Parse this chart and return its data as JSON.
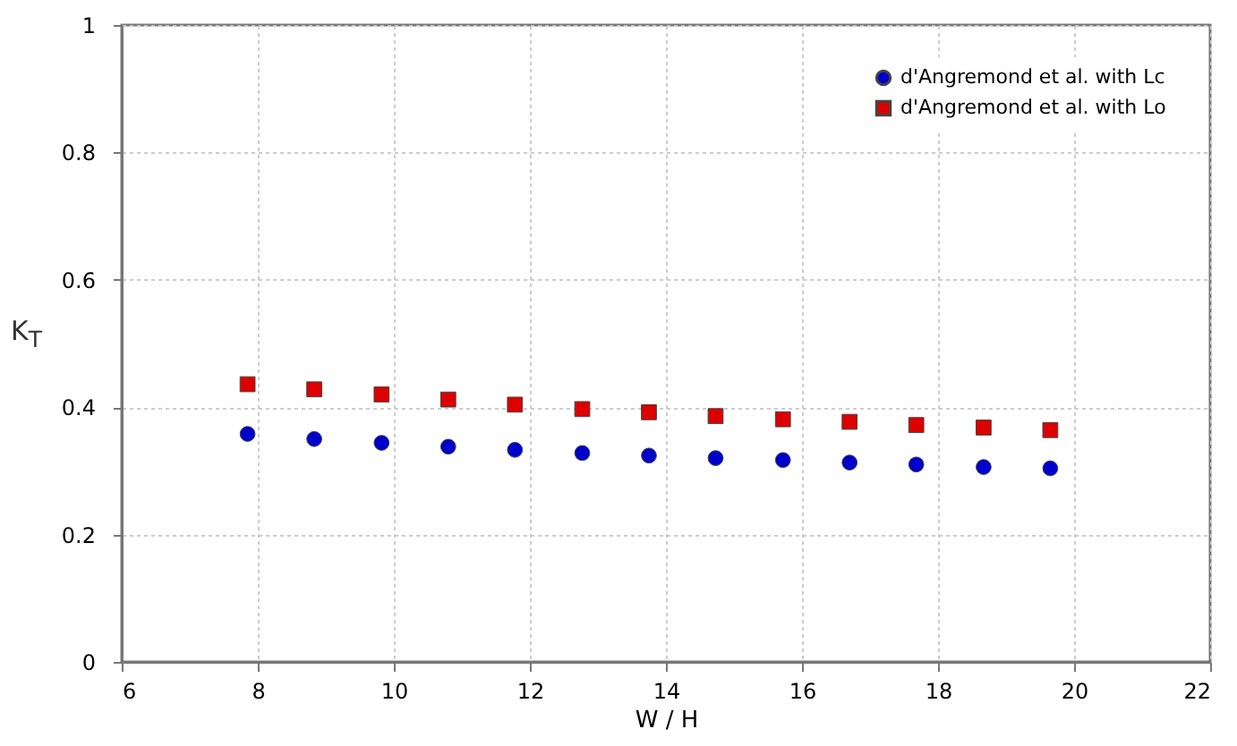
{
  "chart_data": {
    "type": "scatter",
    "xlabel": "W / H",
    "ylabel": "K$_{T}$",
    "xlim": [
      6,
      22
    ],
    "xticks": [
      6,
      8,
      10,
      12,
      14,
      16,
      18,
      20,
      22
    ],
    "ylim": [
      0,
      1
    ],
    "yticks": [
      0,
      0.2,
      0.4,
      0.6,
      0.8,
      1
    ],
    "grid": true,
    "legend": "top right",
    "x": [
      7.85,
      8.83,
      9.82,
      10.8,
      11.78,
      12.77,
      13.75,
      14.73,
      15.72,
      16.7,
      17.68,
      18.67,
      19.65
    ],
    "series": [
      {
        "name": "d'Angremond et al. with Lc",
        "color": "#0000cc",
        "marker": "circle",
        "values": [
          0.358,
          0.35,
          0.344,
          0.338,
          0.333,
          0.328,
          0.324,
          0.32,
          0.317,
          0.313,
          0.31,
          0.306,
          0.304
        ]
      },
      {
        "name": "d'Angremond et al. with Lo",
        "color": "#dd0000",
        "marker": "square",
        "values": [
          0.436,
          0.428,
          0.42,
          0.412,
          0.404,
          0.397,
          0.392,
          0.386,
          0.381,
          0.377,
          0.372,
          0.368,
          0.364
        ]
      }
    ]
  }
}
